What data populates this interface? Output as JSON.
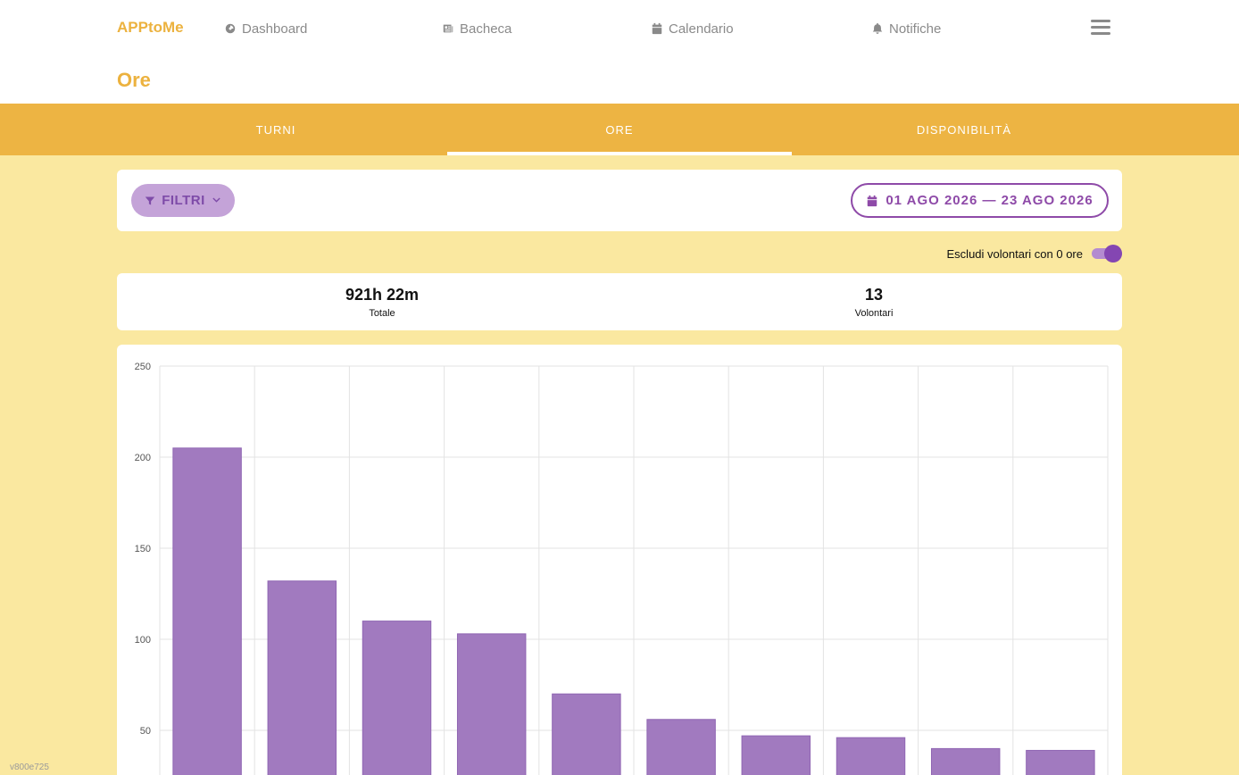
{
  "brand": "APPtoMe",
  "nav": {
    "items": [
      {
        "label": "Dashboard",
        "icon": "dashboard-icon"
      },
      {
        "label": "Bacheca",
        "icon": "newspaper-icon"
      },
      {
        "label": "Calendario",
        "icon": "calendar-icon"
      },
      {
        "label": "Notifiche",
        "icon": "bell-icon"
      }
    ],
    "menu_icon": "hamburger-icon"
  },
  "page_title": "Ore",
  "tabs": [
    {
      "label": "TURNI",
      "active": false
    },
    {
      "label": "ORE",
      "active": true
    },
    {
      "label": "DISPONIBILITÀ",
      "active": false
    }
  ],
  "filters": {
    "label": "FILTRI"
  },
  "date_range": {
    "label": "01 AGO 2026 — 23 AGO 2026"
  },
  "toggle": {
    "label": "Escludi volontari con 0 ore",
    "on": true
  },
  "stats": {
    "total": {
      "value": "921h 22m",
      "label": "Totale"
    },
    "volunteers": {
      "value": "13",
      "label": "Volontari"
    }
  },
  "colors": {
    "accent": "#ecb23f",
    "purple": "#8e4aa8",
    "bar": "#a17abf",
    "background": "#fae8a0"
  },
  "chart_data": {
    "type": "bar",
    "values": [
      205,
      132,
      110,
      103,
      70,
      56,
      47,
      46,
      40,
      39
    ],
    "ylim": [
      0,
      250
    ],
    "yticks": [
      50,
      100,
      150,
      200,
      250
    ],
    "grid": true,
    "legend": "none"
  },
  "version": "v800e725"
}
